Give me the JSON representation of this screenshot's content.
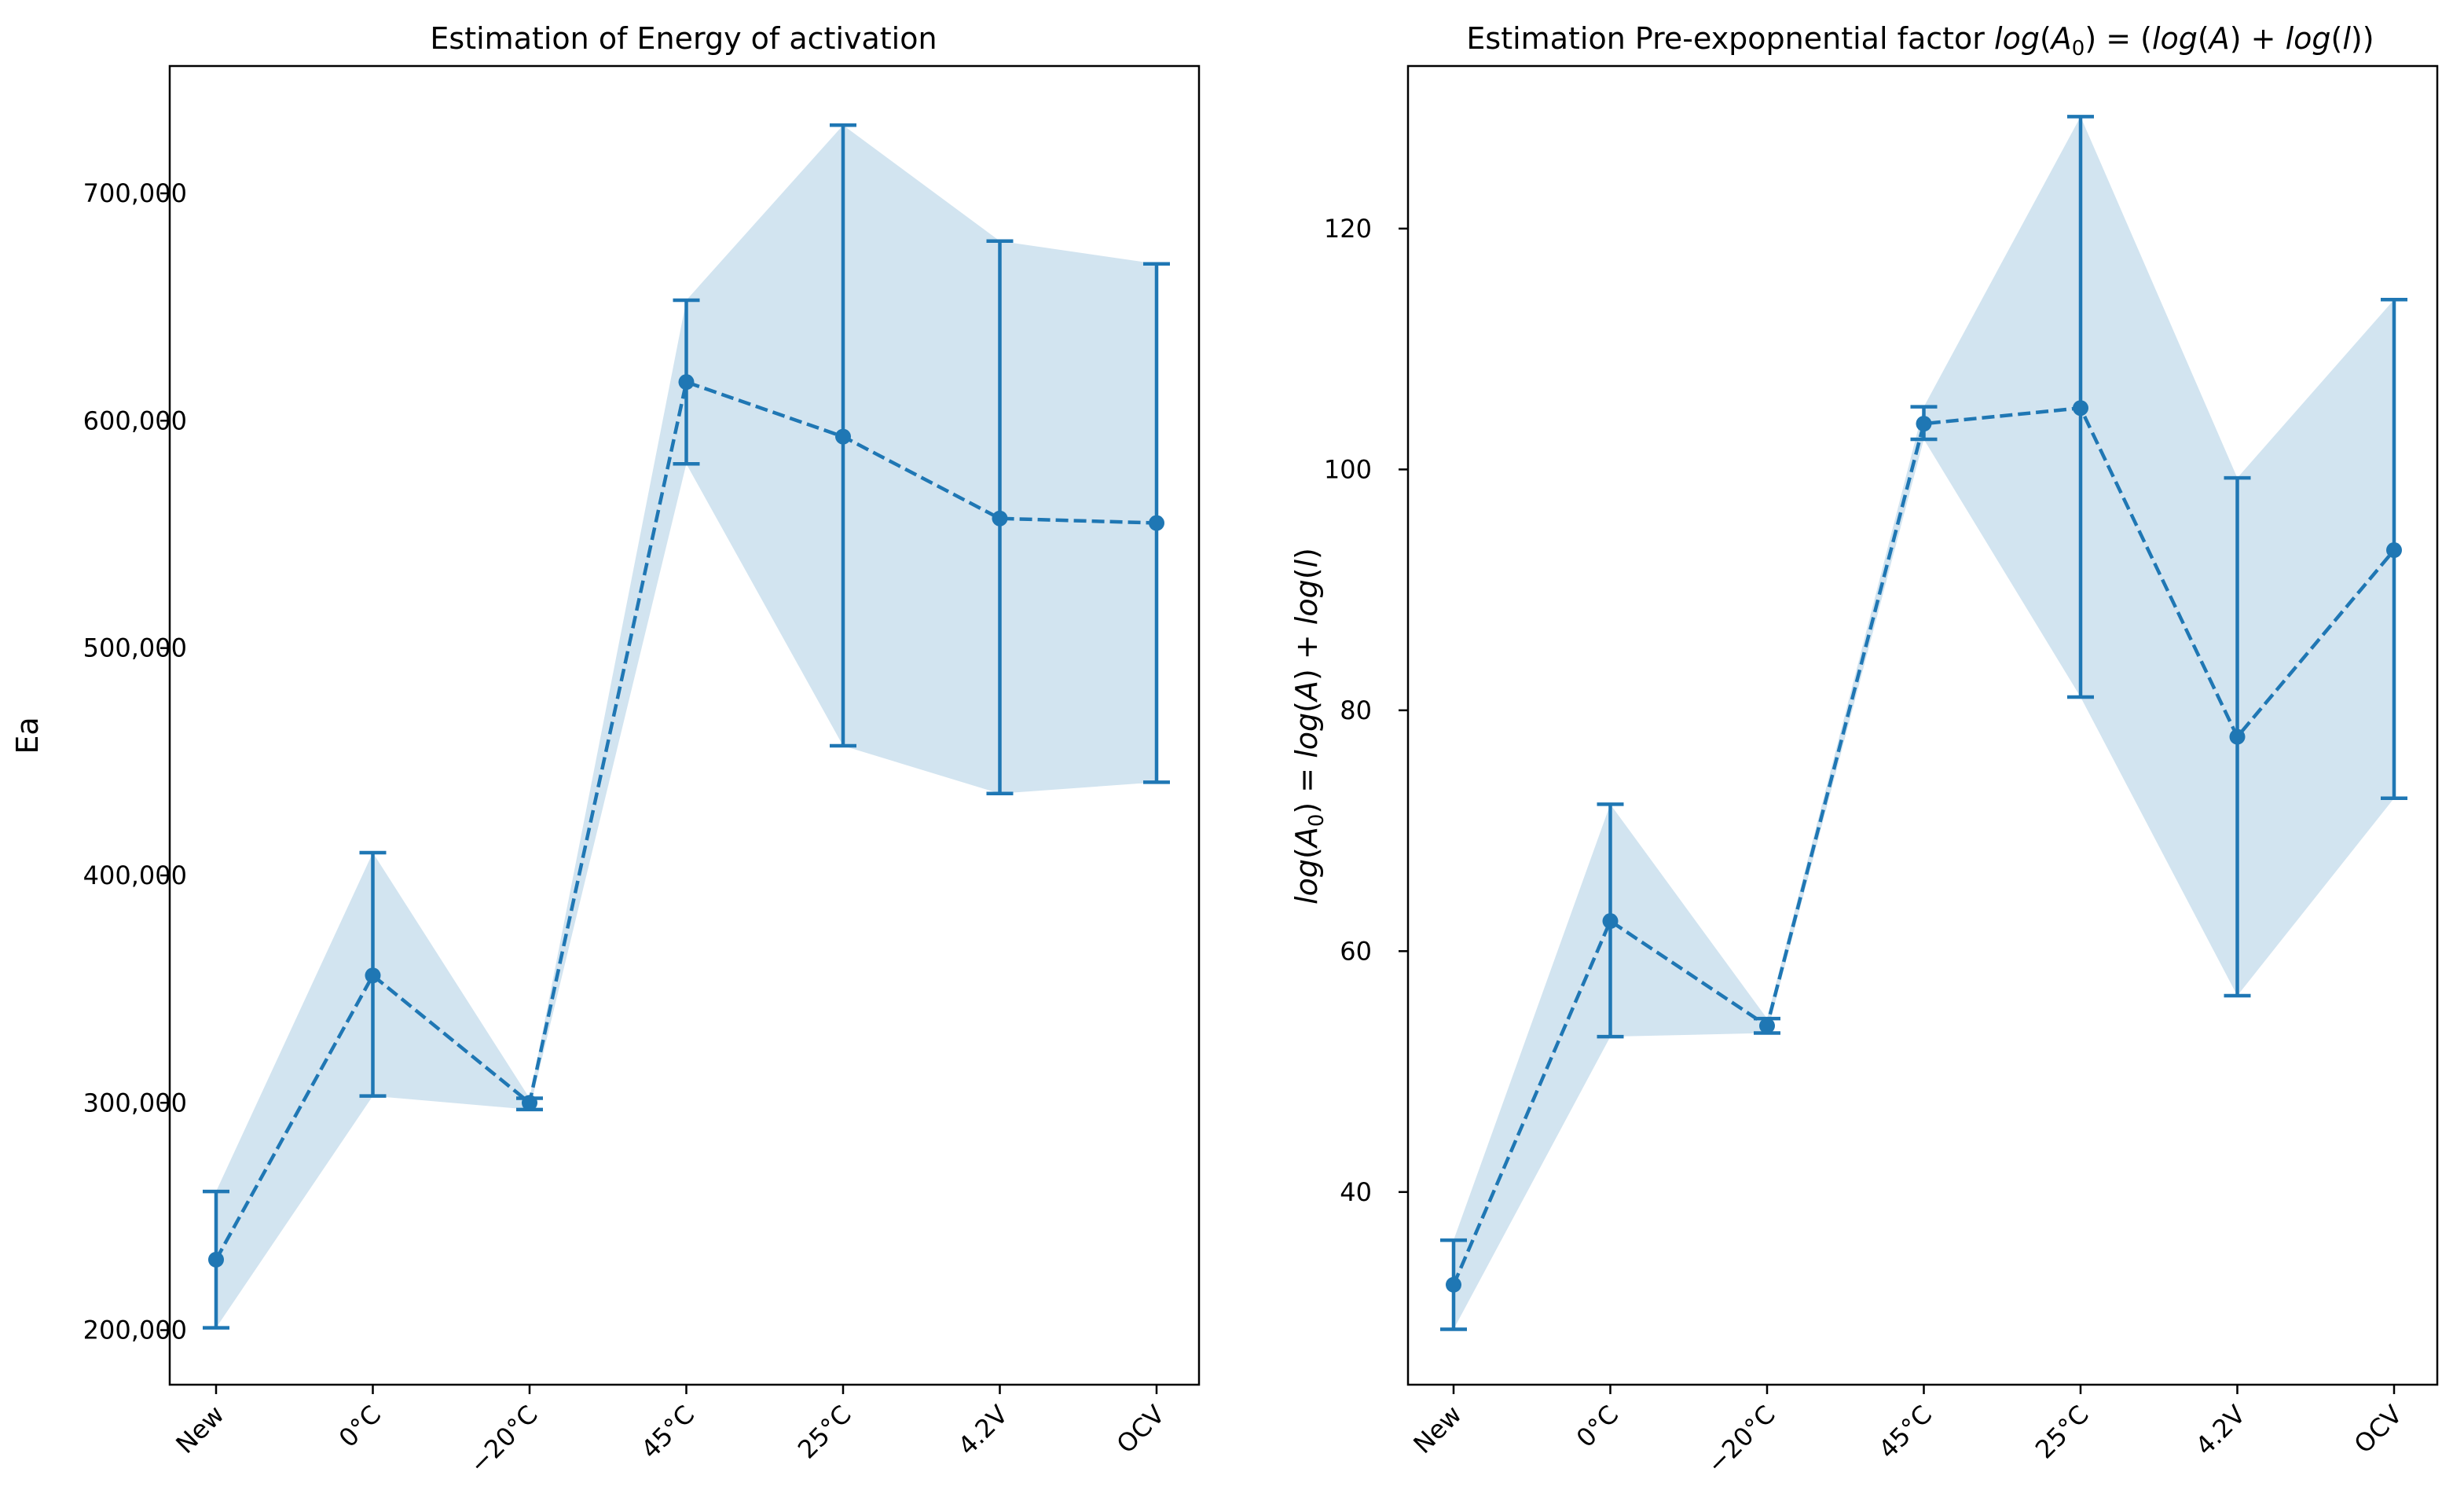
{
  "chart_data": [
    {
      "type": "line",
      "title": "Estimation of Energy of activation",
      "xlabel": "",
      "ylabel": "Ea",
      "categories": [
        "New",
        "0°C",
        "−20°C",
        "45°C",
        "25°C",
        "4.2V",
        "OCV"
      ],
      "values": [
        231000,
        356000,
        300000,
        617000,
        593000,
        557000,
        555000
      ],
      "upper": [
        261000,
        410000,
        302000,
        653000,
        730000,
        679000,
        669000
      ],
      "lower": [
        201000,
        303000,
        297000,
        581000,
        457000,
        436000,
        441000
      ],
      "ylim": [
        176000,
        756000
      ],
      "yticks": [
        200000,
        300000,
        400000,
        500000,
        600000,
        700000
      ],
      "ytick_labels": [
        "200,000",
        "300,000",
        "400,000",
        "500,000",
        "600,000",
        "700,000"
      ],
      "series_color": "#1f77b4",
      "line_style": "dashed",
      "error_bars": true,
      "shaded_band": true
    },
    {
      "type": "line",
      "title": "Estimation Pre-expopnential factor log(A₀) = (log(A) + log(l))",
      "xlabel": "",
      "ylabel": "log(A₀) = log(A) + log(l)",
      "categories": [
        "New",
        "0°C",
        "−20°C",
        "45°C",
        "25°C",
        "4.2V",
        "OCV"
      ],
      "values": [
        32.3,
        62.5,
        53.8,
        103.8,
        105.1,
        77.8,
        93.3
      ],
      "upper": [
        36.0,
        72.2,
        54.4,
        105.2,
        129.3,
        99.3,
        114.1
      ],
      "lower": [
        28.6,
        52.9,
        53.2,
        102.5,
        81.1,
        56.3,
        72.7
      ],
      "ylim": [
        24.0,
        133.5
      ],
      "yticks": [
        40,
        60,
        80,
        100,
        120
      ],
      "ytick_labels": [
        "40",
        "60",
        "80",
        "100",
        "120"
      ],
      "series_color": "#1f77b4",
      "line_style": "dashed",
      "error_bars": true,
      "shaded_band": true
    }
  ]
}
